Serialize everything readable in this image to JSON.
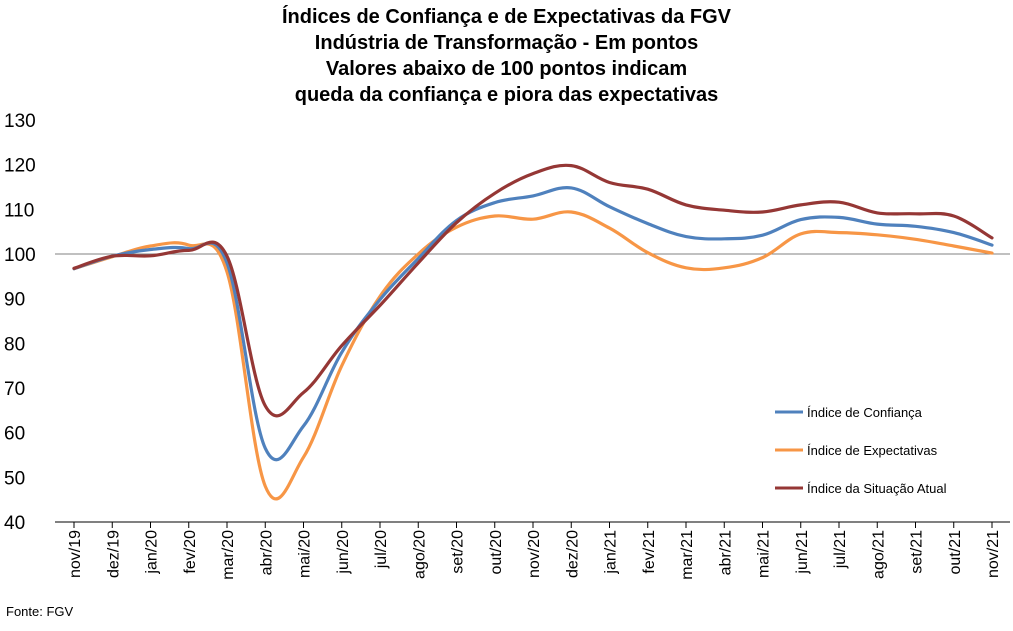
{
  "chart_data": {
    "type": "line",
    "title_lines": [
      "Índices de Confiança e de Expectativas da FGV",
      "Indústria de Transformação - Em pontos",
      "Valores abaixo de 100 pontos indicam",
      "queda da confiança e piora das expectativas"
    ],
    "categories": [
      "nov/19",
      "dez/19",
      "jan/20",
      "fev/20",
      "mar/20",
      "abr/20",
      "mai/20",
      "jun/20",
      "jul/20",
      "ago/20",
      "set/20",
      "out/20",
      "nov/20",
      "dez/20",
      "jan/21",
      "fev/21",
      "mar/21",
      "abr/21",
      "mai/21",
      "jun/21",
      "jul/21",
      "ago/21",
      "set/21",
      "out/21",
      "nov/21"
    ],
    "ylim": [
      40,
      130
    ],
    "yticks": [
      40,
      50,
      60,
      70,
      80,
      90,
      100,
      110,
      120,
      130
    ],
    "reference_line": 100,
    "legend_position": "right",
    "series": [
      {
        "name": "Índice de Confiança",
        "color": "#4f81bd",
        "values": [
          96.7,
          99.5,
          101.0,
          101.2,
          98.0,
          56.5,
          61.5,
          78.0,
          89.8,
          99.0,
          107.5,
          111.5,
          113.0,
          114.8,
          110.6,
          106.8,
          103.9,
          103.4,
          104.2,
          107.7,
          108.2,
          106.7,
          106.2,
          104.8,
          102.0
        ]
      },
      {
        "name": "Índice de Expectativas",
        "color": "#f79646",
        "values": [
          96.7,
          99.4,
          101.8,
          102.0,
          96.0,
          48.0,
          54.5,
          75.0,
          90.5,
          100.0,
          106.0,
          108.5,
          107.8,
          109.4,
          105.8,
          100.3,
          96.9,
          96.9,
          99.2,
          104.5,
          104.8,
          104.3,
          103.3,
          101.8,
          100.2
        ]
      },
      {
        "name": "Índice da Situação Atual",
        "color": "#953735",
        "values": [
          96.8,
          99.5,
          99.6,
          100.8,
          99.5,
          66.0,
          69.0,
          79.5,
          88.5,
          98.0,
          107.0,
          113.6,
          118.0,
          119.8,
          116.0,
          114.5,
          111.0,
          109.8,
          109.4,
          111.0,
          111.6,
          109.2,
          109.0,
          108.5,
          103.6
        ]
      }
    ]
  },
  "source": "Fonte: FGV"
}
